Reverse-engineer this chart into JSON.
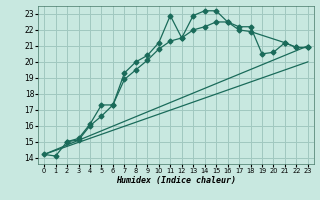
{
  "background_color": "#c8e8e0",
  "grid_color": "#a0c8c0",
  "line_color": "#1a6b5a",
  "xlabel": "Humidex (Indice chaleur)",
  "xlim": [
    -0.5,
    23.5
  ],
  "ylim": [
    13.6,
    23.5
  ],
  "xticks": [
    0,
    1,
    2,
    3,
    4,
    5,
    6,
    7,
    8,
    9,
    10,
    11,
    12,
    13,
    14,
    15,
    16,
    17,
    18,
    19,
    20,
    21,
    22,
    23
  ],
  "yticks": [
    14,
    15,
    16,
    17,
    18,
    19,
    20,
    21,
    22,
    23
  ],
  "series": [
    {
      "x": [
        0,
        1,
        2,
        3,
        4,
        5,
        6,
        7,
        8,
        9,
        10,
        11,
        12,
        13,
        14,
        15,
        16,
        17,
        18,
        19,
        20,
        21,
        22,
        23
      ],
      "y": [
        14.2,
        14.1,
        15.0,
        15.1,
        16.0,
        16.6,
        17.3,
        19.3,
        20.0,
        20.4,
        21.2,
        22.9,
        21.5,
        22.9,
        23.2,
        23.2,
        22.5,
        22.2,
        22.2,
        20.5,
        20.6,
        21.2,
        20.9,
        20.9
      ],
      "marker": "D",
      "markersize": 2.5,
      "lw": 0.9
    },
    {
      "x": [
        2,
        3,
        4,
        5,
        6,
        7,
        8,
        9,
        10,
        11,
        12,
        13,
        14,
        15,
        16,
        17,
        18,
        21,
        22,
        23
      ],
      "y": [
        15.0,
        15.2,
        16.1,
        17.3,
        17.3,
        18.9,
        19.5,
        20.1,
        20.8,
        21.3,
        21.5,
        22.0,
        22.2,
        22.5,
        22.5,
        22.0,
        21.9,
        21.2,
        20.9,
        20.9
      ],
      "marker": "D",
      "markersize": 2.5,
      "lw": 0.9
    },
    {
      "x": [
        0,
        23
      ],
      "y": [
        14.2,
        21.0
      ],
      "marker": null,
      "markersize": 0,
      "lw": 0.9
    },
    {
      "x": [
        0,
        23
      ],
      "y": [
        14.2,
        20.0
      ],
      "marker": null,
      "markersize": 0,
      "lw": 0.9
    }
  ]
}
